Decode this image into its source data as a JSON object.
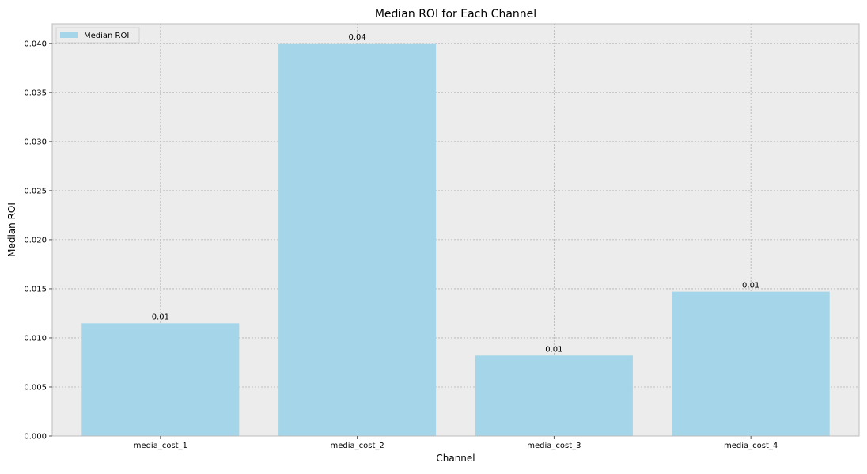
{
  "chart_data": {
    "type": "bar",
    "title": "Median ROI for Each Channel",
    "xlabel": "Channel",
    "ylabel": "Median ROI",
    "categories": [
      "media_cost_1",
      "media_cost_2",
      "media_cost_3",
      "media_cost_4"
    ],
    "series": [
      {
        "name": "Median ROI",
        "values": [
          0.0115,
          0.04,
          0.0082,
          0.0147
        ]
      }
    ],
    "data_labels": [
      "0.01",
      "0.04",
      "0.01",
      "0.01"
    ],
    "ylim": [
      0,
      0.042
    ],
    "yticks": [
      0.0,
      0.005,
      0.01,
      0.015,
      0.02,
      0.025,
      0.03,
      0.035,
      0.04
    ],
    "ytick_labels": [
      "0.000",
      "0.005",
      "0.010",
      "0.015",
      "0.020",
      "0.025",
      "0.030",
      "0.035",
      "0.040"
    ],
    "grid": true,
    "legend_position": "top-left",
    "colors": {
      "bar": "#a4d5e8",
      "plot_background": "#ececec",
      "grid": "#b2b2b2",
      "axis": "#bcbcbc"
    }
  }
}
